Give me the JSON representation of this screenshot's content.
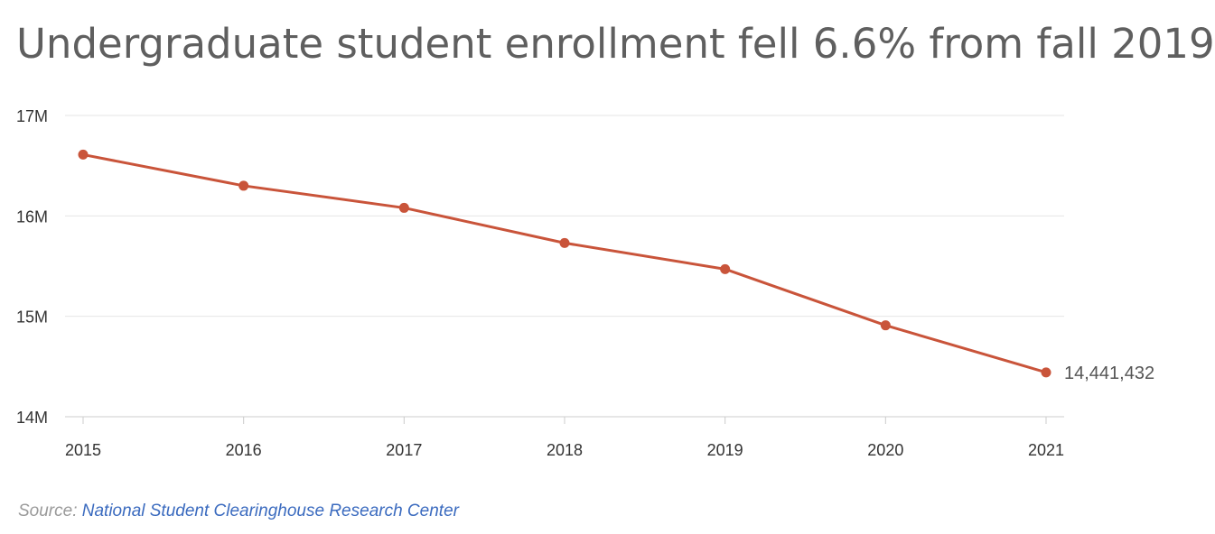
{
  "title": "Undergraduate student enrollment fell 6.6% from fall 2019",
  "source": {
    "label": "Source:",
    "link_text": "National Student Clearinghouse Research Center"
  },
  "colors": {
    "line": "#c9543a",
    "grid": "#e6e6e6",
    "axis_text": "#333333",
    "end_label": "#555555"
  },
  "chart_data": {
    "type": "line",
    "categories": [
      "2015",
      "2016",
      "2017",
      "2018",
      "2019",
      "2020",
      "2021"
    ],
    "values": [
      16610000,
      16300000,
      16080000,
      15730000,
      15470000,
      14910000,
      14441432
    ],
    "ylim": [
      14000000,
      17000000
    ],
    "yticks": [
      {
        "value": 17000000,
        "label": "17M"
      },
      {
        "value": 16000000,
        "label": "16M"
      },
      {
        "value": 15000000,
        "label": "15M"
      },
      {
        "value": 14000000,
        "label": "14M"
      }
    ],
    "end_label": "14,441,432",
    "grid": true,
    "xlabel": "",
    "ylabel": ""
  }
}
